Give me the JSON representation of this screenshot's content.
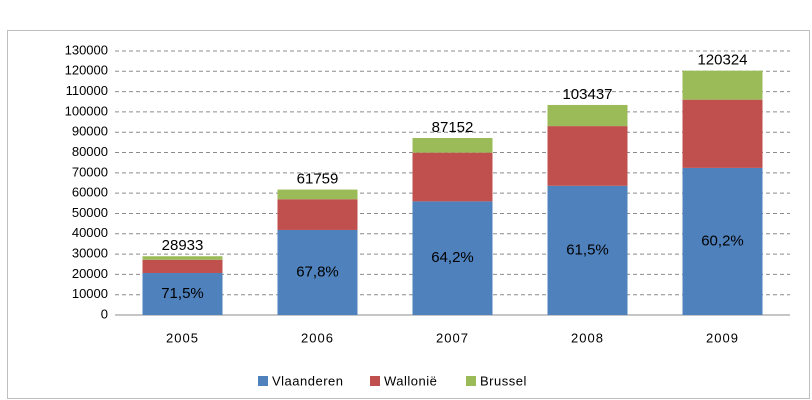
{
  "chart_data": {
    "type": "stacked_bar",
    "categories": [
      "2005",
      "2006",
      "2007",
      "2008",
      "2009"
    ],
    "series": [
      {
        "name": "Vlaanderen",
        "color": "#4f81bd",
        "values": [
          20687,
          41873,
          55952,
          63614,
          72435
        ]
      },
      {
        "name": "Wallonië",
        "color": "#c0504d",
        "values": [
          6500,
          15127,
          24000,
          29400,
          33600
        ]
      },
      {
        "name": "Brussel",
        "color": "#9bbb59",
        "values": [
          1746,
          4759,
          7200,
          10423,
          14289
        ]
      }
    ],
    "share_labels": [
      "71,5%",
      "67,8%",
      "64,2%",
      "61,5%",
      "60,2%"
    ],
    "totals": [
      28933,
      61759,
      87152,
      103437,
      120324
    ],
    "ylim": [
      0,
      130000
    ],
    "yticks": [
      0,
      10000,
      20000,
      30000,
      40000,
      50000,
      60000,
      70000,
      80000,
      90000,
      100000,
      110000,
      120000,
      130000
    ],
    "grid": true,
    "legend": "bottom"
  }
}
